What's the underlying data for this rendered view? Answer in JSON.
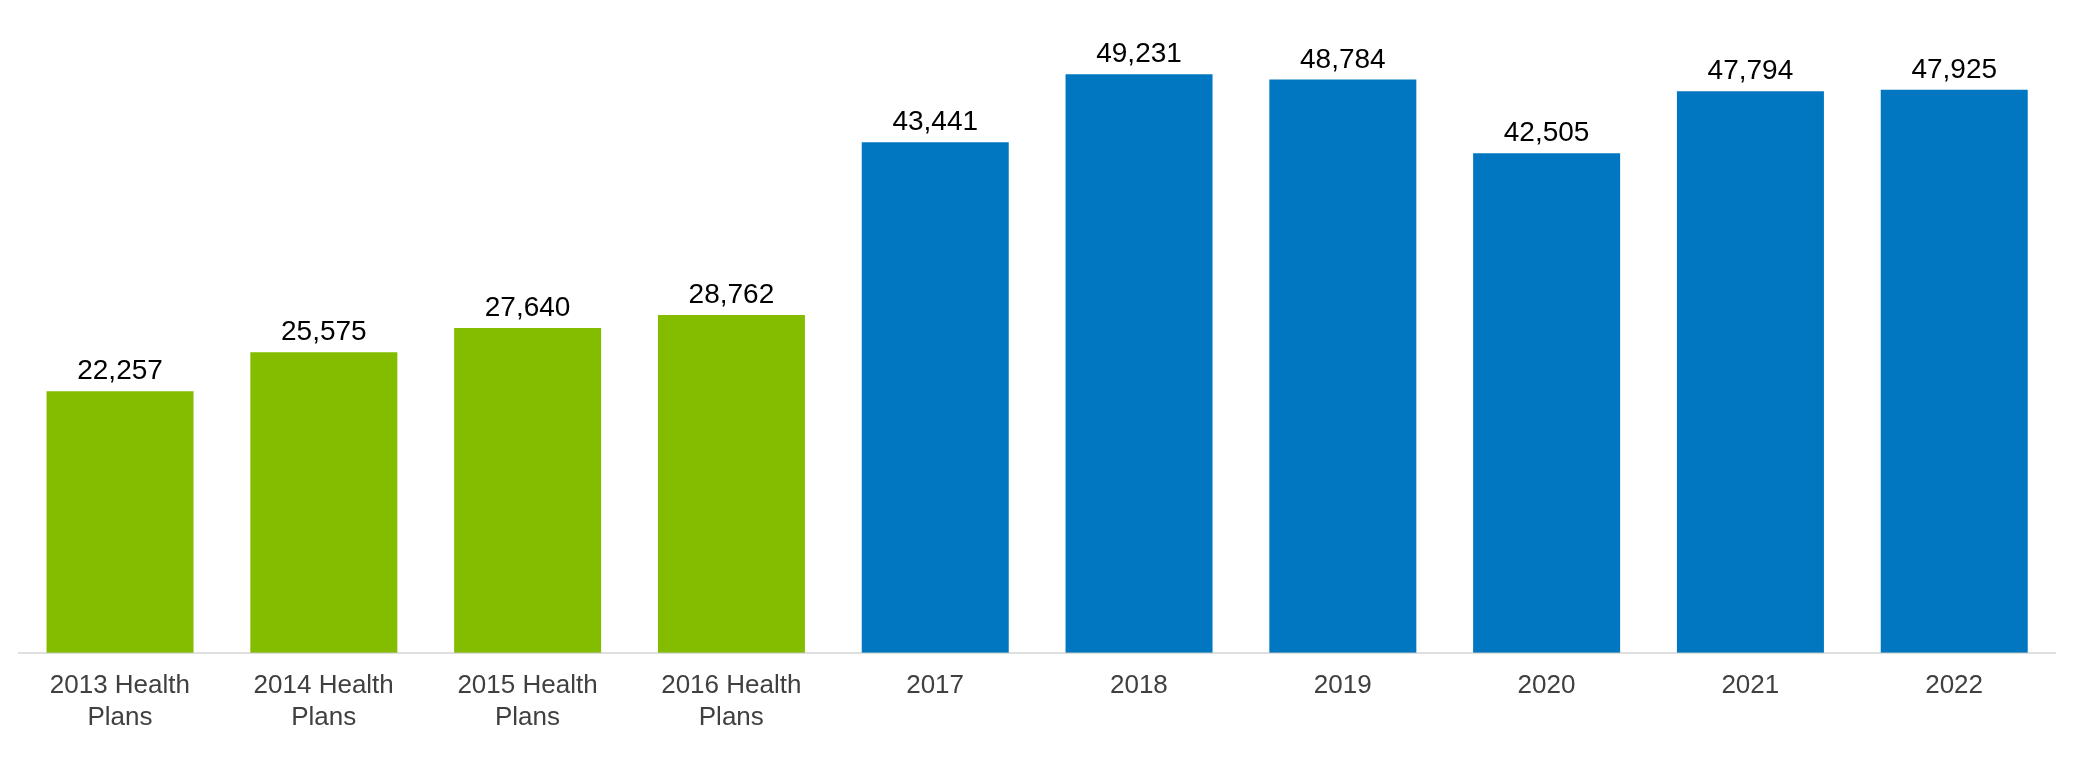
{
  "chart_data": {
    "type": "bar",
    "categories": [
      "2013 Health Plans",
      "2014 Health Plans",
      "2015 Health Plans",
      "2016 Health Plans",
      "2017",
      "2018",
      "2019",
      "2020",
      "2021",
      "2022"
    ],
    "values": [
      22257,
      25575,
      27640,
      28762,
      43441,
      49231,
      48784,
      42505,
      47794,
      47925
    ],
    "value_labels": [
      "22,257",
      "25,575",
      "27,640",
      "28,762",
      "43,441",
      "49,231",
      "48,784",
      "42,505",
      "47,794",
      "47,925"
    ],
    "colors": [
      "#84bd00",
      "#84bd00",
      "#84bd00",
      "#84bd00",
      "#0077c0",
      "#0077c0",
      "#0077c0",
      "#0077c0",
      "#0077c0",
      "#0077c0"
    ]
  }
}
